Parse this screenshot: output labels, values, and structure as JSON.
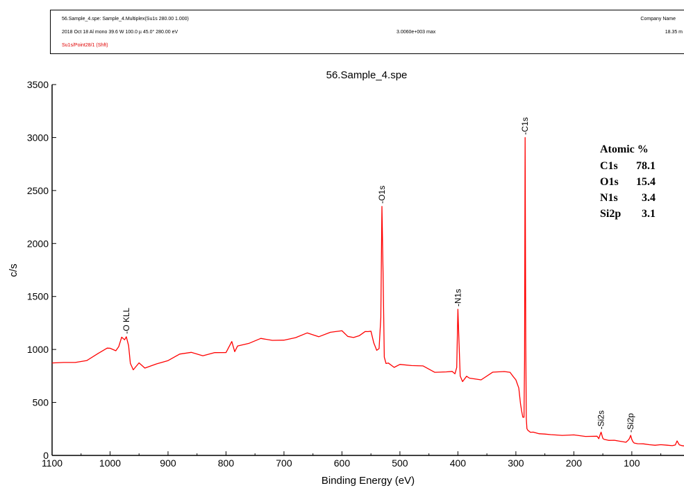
{
  "header": {
    "title_line": "56.Sample_4.spe: Sample_4.Multiplex(Su1s 280.00 1.000)",
    "company": "Company Name",
    "details_line": "2018 Oct 18  Al mono  39.6 W  100.0 µ  45.0°  280.00 eV",
    "max_value": "3.0060e+003 max",
    "time": "18.35 m",
    "region": "Su1s/Point28/1 (Shft)"
  },
  "colors": {
    "spectrum": "#ff0000",
    "axes": "#000000",
    "region_text": "#e00000"
  },
  "chart_data": {
    "type": "line",
    "title": "56.Sample_4.spe",
    "xlabel": "Binding Energy (eV)",
    "ylabel": "c/s",
    "xlim": [
      1100,
      10
    ],
    "ylim": [
      0,
      3500
    ],
    "x_reversed": true,
    "grid": false,
    "x_ticks": [
      1100,
      1000,
      900,
      800,
      700,
      600,
      500,
      400,
      300,
      200,
      100
    ],
    "x_tick_labels": [
      "1100",
      "1000",
      "900",
      "800",
      "700",
      "600",
      "500",
      "400",
      "300",
      "200",
      "100"
    ],
    "y_ticks": [
      0,
      500,
      1000,
      1500,
      2000,
      2500,
      3000,
      3500
    ],
    "y_tick_labels": [
      "0",
      "500",
      "1000",
      "1500",
      "2000",
      "2500",
      "3000",
      "3500"
    ],
    "series": [
      {
        "x": [
          1100,
          1080,
          1060,
          1040,
          1020,
          1005,
          1000,
          990,
          985,
          980,
          975,
          972,
          968,
          965,
          960,
          950,
          940,
          920,
          900,
          880,
          860,
          840,
          820,
          800,
          790,
          785,
          780,
          760,
          740,
          720,
          700,
          680,
          660,
          640,
          620,
          600,
          590,
          580,
          570,
          560,
          555,
          550,
          545,
          540,
          536,
          533,
          531,
          529,
          527,
          524,
          520,
          510,
          500,
          480,
          460,
          440,
          420,
          410,
          405,
          402,
          400,
          398,
          396,
          392,
          385,
          380,
          360,
          340,
          320,
          310,
          305,
          300,
          295,
          292,
          290,
          288,
          286,
          285,
          284,
          283,
          282,
          281,
          279,
          277,
          275,
          270,
          260,
          250,
          240,
          220,
          200,
          180,
          160,
          157,
          155,
          153,
          150,
          148,
          140,
          130,
          120,
          110,
          106,
          104,
          102,
          100,
          98,
          96,
          90,
          80,
          70,
          60,
          50,
          40,
          30,
          25,
          22,
          18,
          14,
          10
        ],
        "y": [
          870,
          890,
          900,
          930,
          960,
          1030,
          1000,
          1020,
          1040,
          1080,
          1110,
          1120,
          1000,
          840,
          830,
          840,
          850,
          860,
          890,
          920,
          940,
          960,
          990,
          1010,
          1070,
          1010,
          1050,
          1080,
          1100,
          1110,
          1120,
          1140,
          1150,
          1160,
          1160,
          1150,
          1170,
          1130,
          1150,
          1150,
          1190,
          1150,
          1040,
          1000,
          980,
          1300,
          2350,
          1700,
          950,
          880,
          860,
          850,
          840,
          820,
          820,
          810,
          810,
          800,
          790,
          830,
          1380,
          1050,
          750,
          720,
          740,
          730,
          740,
          760,
          780,
          790,
          760,
          720,
          620,
          480,
          420,
          370,
          360,
          900,
          3000,
          1100,
          350,
          260,
          240,
          230,
          220,
          220,
          210,
          200,
          200,
          190,
          190,
          180,
          180,
          160,
          190,
          220,
          160,
          150,
          140,
          140,
          130,
          120,
          140,
          160,
          190,
          150,
          130,
          120,
          110,
          110,
          100,
          100,
          100,
          95,
          95,
          100,
          140,
          100,
          90,
          90
        ],
        "peaks": [
          {
            "label": "-O KLL",
            "x": 972,
            "y": 1120
          },
          {
            "label": "-O1s",
            "x": 531,
            "y": 2350
          },
          {
            "label": "-N1s",
            "x": 400,
            "y": 1380
          },
          {
            "label": "-C1s",
            "x": 284,
            "y": 3000
          },
          {
            "label": "-Si2s",
            "x": 153,
            "y": 220
          },
          {
            "label": "-Si2p",
            "x": 102,
            "y": 190
          }
        ]
      }
    ],
    "annotation": {
      "title": "Atomic %",
      "rows": [
        {
          "element": "C1s",
          "value": "78.1"
        },
        {
          "element": "O1s",
          "value": "15.4"
        },
        {
          "element": "N1s",
          "value": "3.4"
        },
        {
          "element": "Si2p",
          "value": "3.1"
        }
      ]
    }
  }
}
